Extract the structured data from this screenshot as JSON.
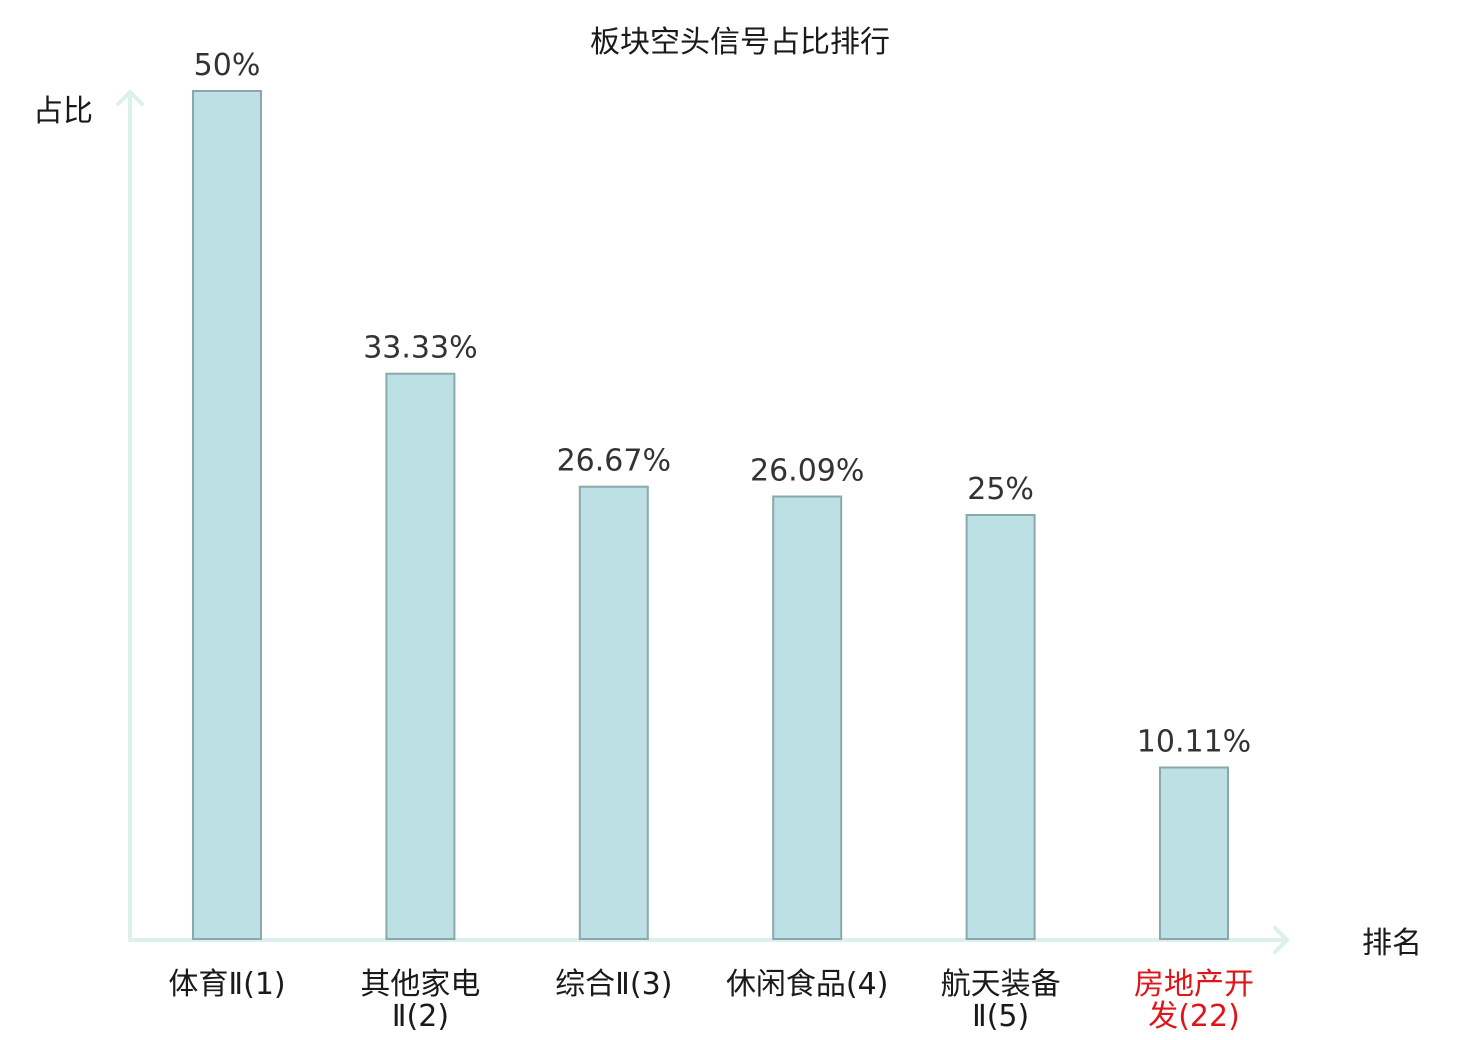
{
  "chart_data": {
    "type": "bar",
    "title": "板块空头信号占比排行",
    "ylabel": "占比",
    "xlabel": "排名",
    "categories": [
      {
        "lines": [
          "体育Ⅱ(1)"
        ],
        "highlight": false
      },
      {
        "lines": [
          "其他家电",
          "Ⅱ(2)"
        ],
        "highlight": false
      },
      {
        "lines": [
          "综合Ⅱ(3)"
        ],
        "highlight": false
      },
      {
        "lines": [
          "休闲食品(4)"
        ],
        "highlight": false
      },
      {
        "lines": [
          "航天装备",
          "Ⅱ(5)"
        ],
        "highlight": false
      },
      {
        "lines": [
          "房地产开",
          "发(22)"
        ],
        "highlight": true
      }
    ],
    "values": [
      50,
      33.33,
      26.67,
      26.09,
      25,
      10.11
    ],
    "value_labels": [
      "50%",
      "33.33%",
      "26.67%",
      "26.09%",
      "25%",
      "10.11%"
    ],
    "ylim": [
      0,
      50
    ],
    "grid": false,
    "colors": {
      "bar_fill": "#bce0e3",
      "bar_stroke": "#8aa8ab",
      "axis": "#dcf0ed",
      "highlight": "#e0151a"
    }
  }
}
